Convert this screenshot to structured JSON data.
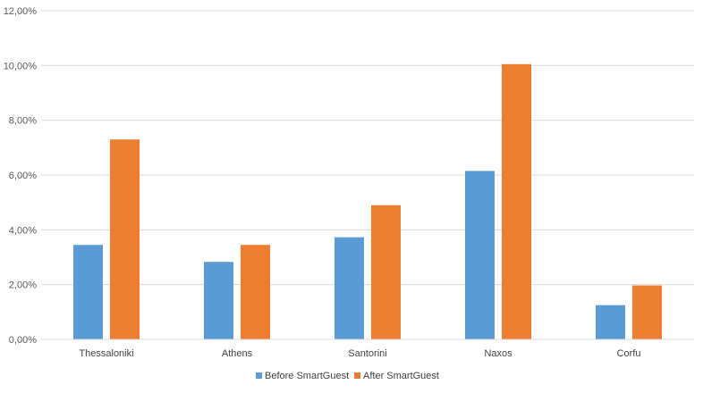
{
  "chart_data": {
    "type": "bar",
    "categories": [
      "Thessaloniki",
      "Athens",
      "Santorini",
      "Naxos",
      "Corfu"
    ],
    "series": [
      {
        "name": "Before SmartGuest",
        "color": "#5B9BD5",
        "values": [
          3.45,
          2.83,
          3.73,
          6.15,
          1.25
        ]
      },
      {
        "name": "After SmartGuest",
        "color": "#ED7D31",
        "values": [
          7.3,
          3.45,
          4.9,
          10.05,
          1.97
        ]
      }
    ],
    "y_ticks": [
      "0,00%",
      "2,00%",
      "4,00%",
      "6,00%",
      "8,00%",
      "10,00%",
      "12,00%"
    ],
    "ylim": [
      0,
      12
    ],
    "y_unit": "percent",
    "grid": true,
    "legend_position": "bottom"
  }
}
